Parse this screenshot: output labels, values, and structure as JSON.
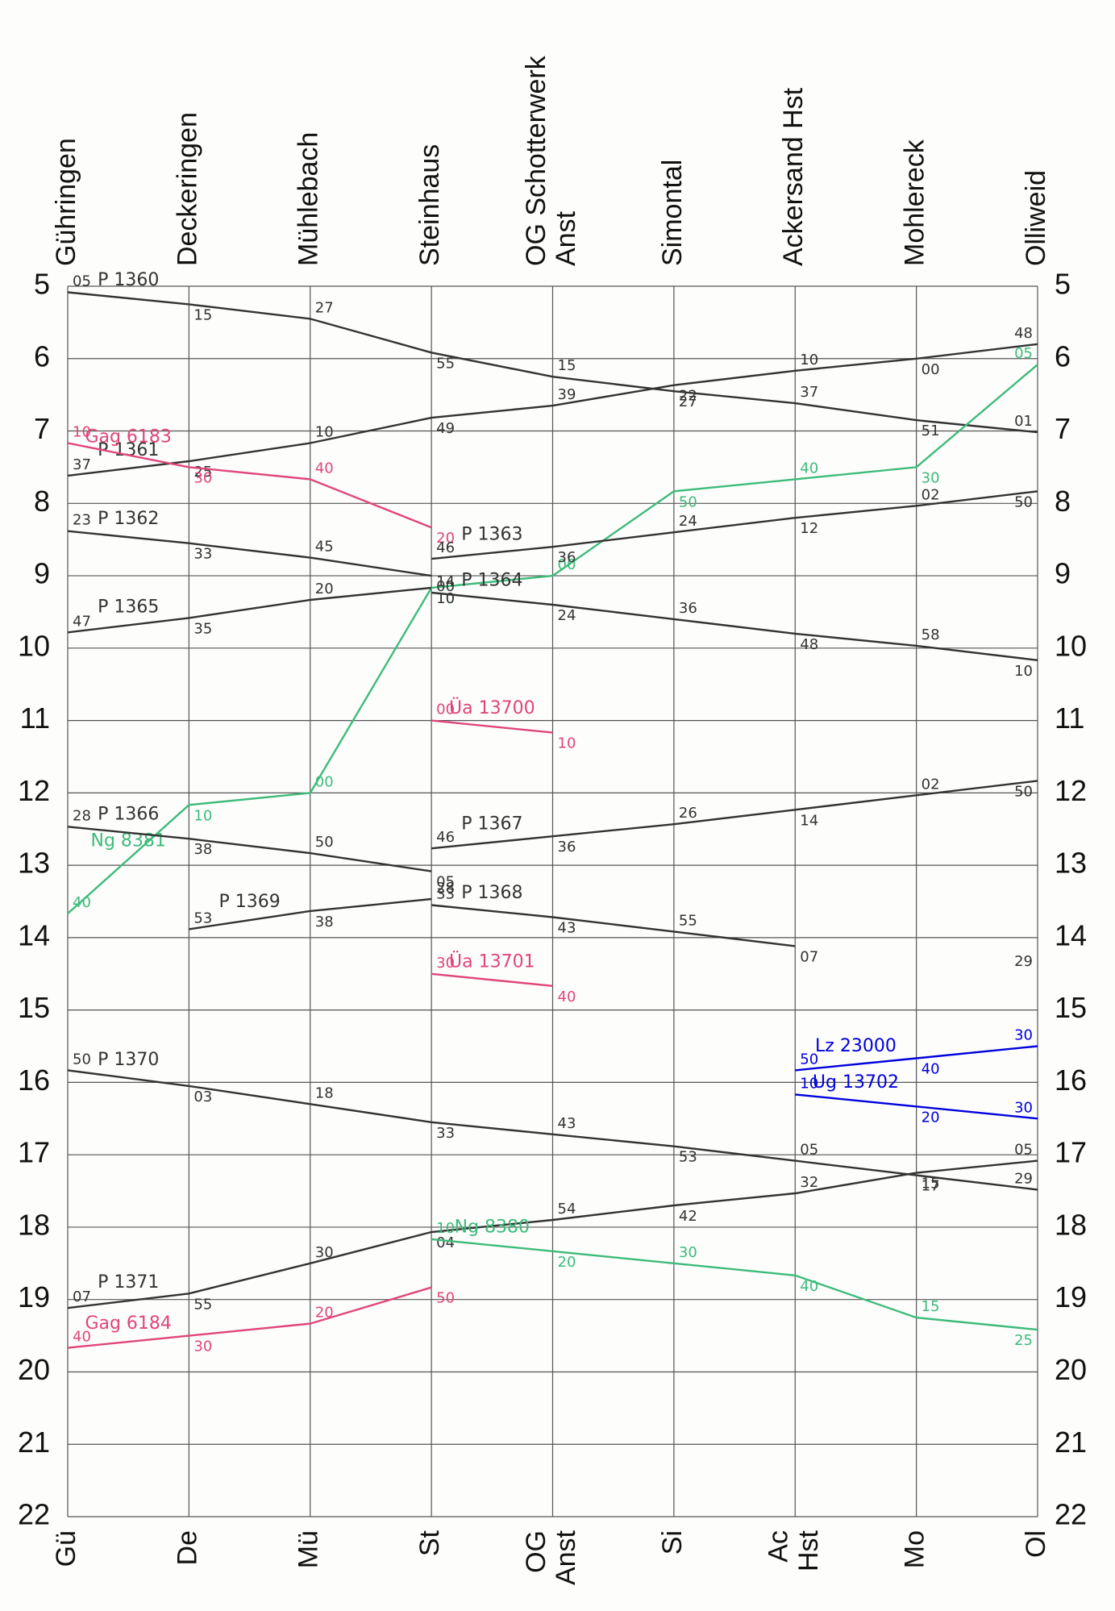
{
  "chart_data": {
    "type": "line",
    "categories": [
      "Gühringen",
      "Deckeringen",
      "Mühlebach",
      "Steinhaus",
      "OG Schotterwerk Anst",
      "Simontal",
      "Ackersand Hst",
      "Mohlereck",
      "Olliweid"
    ],
    "category_abbreviations": [
      "Gü",
      "De",
      "Mü",
      "St",
      "OG Anst",
      "Si",
      "Ac Hst",
      "Mo",
      "Ol"
    ],
    "ylim": [
      22,
      5
    ],
    "yticks": [
      5,
      6,
      7,
      8,
      9,
      10,
      11,
      12,
      13,
      14,
      15,
      16,
      17,
      18,
      19,
      20,
      21,
      22
    ],
    "grid": true,
    "series": [
      {
        "name": "P 1360",
        "color": "#333333",
        "values": [
          5.083,
          5.25,
          5.45,
          5.917,
          6.25,
          6.45,
          6.617,
          6.85,
          7.017
        ],
        "value_labels": [
          "05",
          "15",
          "27",
          "55",
          "15",
          "27",
          "37",
          "51",
          "01"
        ]
      },
      {
        "name": "P 1361",
        "color": "#333333",
        "values": [
          7.617,
          7.417,
          7.167,
          6.817,
          6.65,
          6.367,
          6.167,
          6.0,
          5.8
        ],
        "value_labels": [
          "37",
          "25",
          "10",
          "49",
          "39",
          "22",
          "10",
          "00",
          "48"
        ]
      },
      {
        "name": "Gag 6183",
        "color": "#e0457b",
        "values": [
          7.167,
          7.5,
          7.667,
          8.333,
          null,
          null,
          null,
          null,
          null
        ],
        "value_labels": [
          "10",
          "30",
          "40",
          "20",
          null,
          null,
          null,
          null,
          null
        ]
      },
      {
        "name": "Ng 8381",
        "color": "#3dbb7a",
        "values": [
          13.667,
          12.167,
          12.0,
          9.167,
          9.0,
          7.833,
          7.667,
          7.5,
          6.083
        ],
        "value_labels": [
          "40",
          "10",
          "00",
          "10",
          "00",
          "50",
          "40",
          "30",
          "05"
        ]
      },
      {
        "name": "P 1362",
        "color": "#333333",
        "values": [
          8.383,
          8.55,
          8.75,
          9.0,
          null,
          null,
          null,
          null,
          null
        ],
        "value_labels": [
          "23",
          "33",
          "45",
          "00",
          null,
          null,
          null,
          null,
          null
        ]
      },
      {
        "name": "P 1363",
        "color": "#333333",
        "values": [
          null,
          null,
          null,
          8.767,
          8.6,
          8.4,
          8.2,
          8.033,
          7.833
        ],
        "value_labels": [
          null,
          null,
          null,
          "46",
          "36",
          "24",
          "12",
          "02",
          "50"
        ]
      },
      {
        "name": "P 1365",
        "color": "#333333",
        "values": [
          9.783,
          9.583,
          9.333,
          9.167,
          null,
          null,
          null,
          null,
          null
        ],
        "value_labels": [
          "47",
          "35",
          "20",
          "10",
          null,
          null,
          null,
          null,
          null
        ]
      },
      {
        "name": "P 1364",
        "color": "#333333",
        "values": [
          null,
          null,
          null,
          9.233,
          9.4,
          9.6,
          9.8,
          9.967,
          10.167
        ],
        "value_labels": [
          null,
          null,
          null,
          "14",
          "24",
          "36",
          "48",
          "58",
          "10"
        ]
      },
      {
        "name": "Üa 13700",
        "color": "#e0457b",
        "values": [
          null,
          null,
          null,
          11.0,
          11.167,
          null,
          null,
          null,
          null
        ],
        "value_labels": [
          null,
          null,
          null,
          "00",
          "10",
          null,
          null,
          null,
          null
        ]
      },
      {
        "name": "P 1366",
        "color": "#333333",
        "values": [
          12.467,
          12.633,
          12.833,
          13.083,
          null,
          null,
          null,
          null,
          null
        ],
        "value_labels": [
          "28",
          "38",
          "50",
          "05",
          null,
          null,
          null,
          null,
          null
        ]
      },
      {
        "name": "P 1367",
        "color": "#333333",
        "values": [
          null,
          null,
          null,
          12.767,
          12.6,
          12.433,
          12.233,
          12.033,
          11.833
        ],
        "value_labels": [
          null,
          null,
          null,
          "46",
          "36",
          "26",
          "14",
          "02",
          "50"
        ]
      },
      {
        "name": "P 1369",
        "color": "#333333",
        "values": [
          null,
          13.883,
          13.633,
          13.467,
          null,
          null,
          null,
          null,
          null
        ],
        "value_labels": [
          null,
          "53",
          "38",
          "28",
          null,
          null,
          null,
          null,
          null
        ]
      },
      {
        "name": "P 1368",
        "color": "#333333",
        "values": [
          null,
          null,
          null,
          13.55,
          13.717,
          13.917,
          14.117,
          null,
          14.483
        ],
        "value_labels": [
          null,
          null,
          null,
          "33",
          "43",
          "55",
          "07",
          null,
          "29"
        ]
      },
      {
        "name": "Üa 13701",
        "color": "#e0457b",
        "values": [
          null,
          null,
          null,
          14.5,
          14.667,
          null,
          null,
          null,
          null
        ],
        "value_labels": [
          null,
          null,
          null,
          "30",
          "40",
          null,
          null,
          null,
          null
        ]
      },
      {
        "name": "Lz 23000",
        "color": "#0000dd",
        "values": [
          null,
          null,
          null,
          null,
          null,
          null,
          15.833,
          15.667,
          15.5
        ],
        "value_labels": [
          null,
          null,
          null,
          null,
          null,
          null,
          "50",
          "40",
          "30"
        ]
      },
      {
        "name": "Ug 13702",
        "color": "#0000dd",
        "values": [
          null,
          null,
          null,
          null,
          null,
          null,
          16.167,
          16.333,
          16.5
        ],
        "value_labels": [
          null,
          null,
          null,
          null,
          null,
          null,
          "10",
          "20",
          "30"
        ]
      },
      {
        "name": "P 1370",
        "color": "#333333",
        "values": [
          15.833,
          16.05,
          16.3,
          16.55,
          16.717,
          16.883,
          17.083,
          17.283,
          17.483
        ],
        "value_labels": [
          "50",
          "03",
          "18",
          "33",
          "43",
          "53",
          "05",
          "17",
          "29"
        ]
      },
      {
        "name": "P 1371",
        "color": "#333333",
        "values": [
          19.117,
          18.917,
          18.5,
          18.067,
          17.9,
          17.7,
          17.533,
          17.25,
          17.083
        ],
        "value_labels": [
          "07",
          "55",
          "30",
          "04",
          "54",
          "42",
          "32",
          "15",
          "05"
        ]
      },
      {
        "name": "Ng 8380",
        "color": "#3dbb7a",
        "values": [
          null,
          null,
          null,
          18.167,
          18.333,
          18.5,
          18.667,
          19.25,
          19.417
        ],
        "value_labels": [
          null,
          null,
          null,
          "10",
          "20",
          "30",
          "40",
          "15",
          "25"
        ]
      },
      {
        "name": "Gag 6184",
        "color": "#e0457b",
        "values": [
          19.667,
          19.5,
          19.333,
          18.833,
          null,
          null,
          null,
          null,
          null
        ],
        "value_labels": [
          "40",
          "30",
          "20",
          "50",
          null,
          null,
          null,
          null,
          null
        ]
      }
    ]
  }
}
